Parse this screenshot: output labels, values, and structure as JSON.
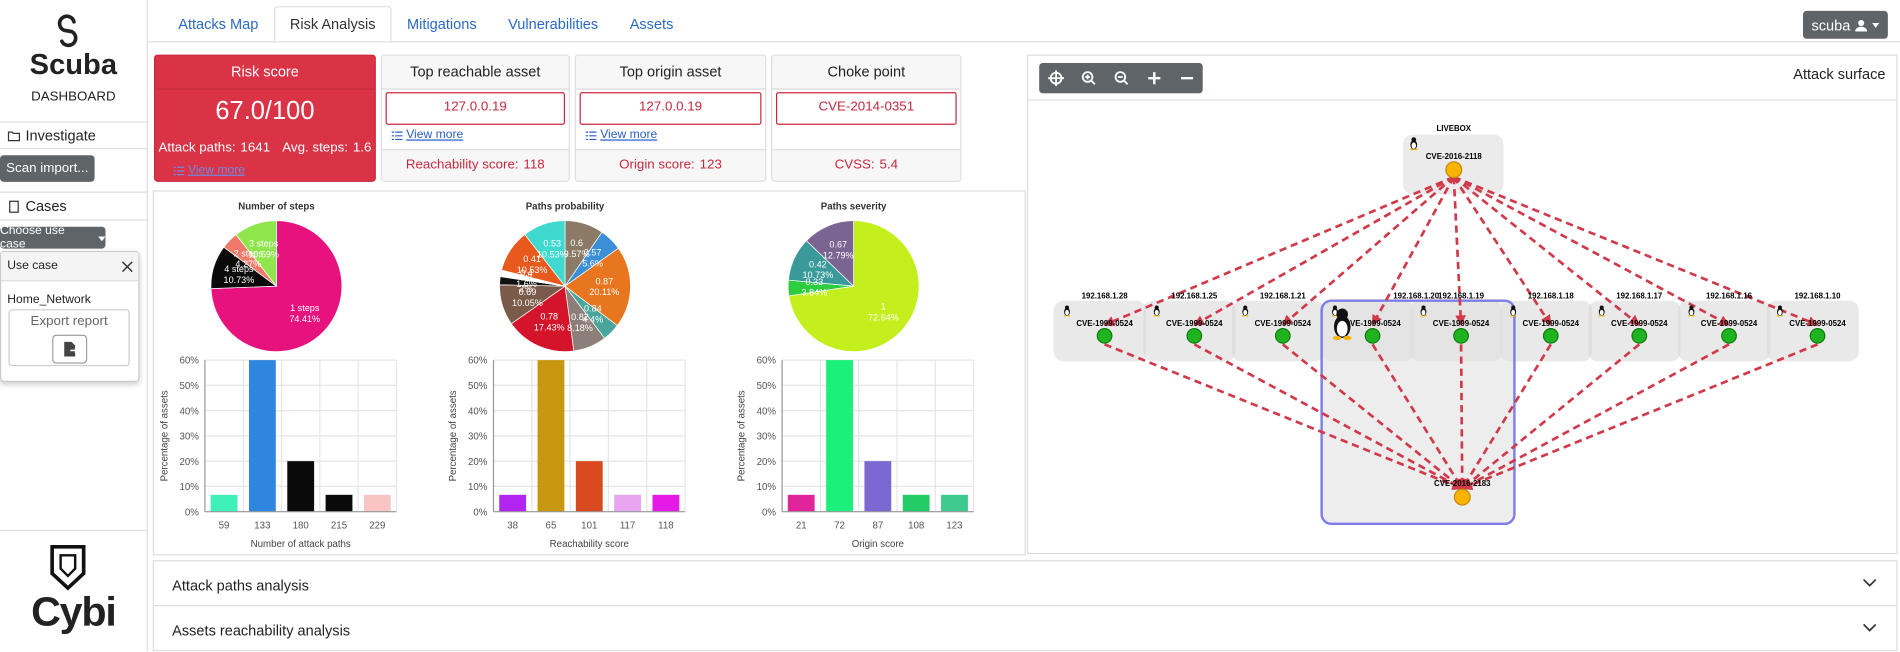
{
  "sidebar": {
    "brand": "Scuba",
    "subtitle": "DASHBOARD",
    "investigate": "Investigate",
    "scan_import": "Scan import...",
    "cases": "Cases",
    "choose_use_case": "Choose use case",
    "popover": {
      "title": "Use case",
      "item": "Home_Network",
      "export": "Export report"
    },
    "footer_brand": "Cybi"
  },
  "nav": {
    "tabs": [
      "Attacks Map",
      "Risk Analysis",
      "Mitigations",
      "Vulnerabilities",
      "Assets"
    ],
    "active_tab": 1,
    "user": "scuba"
  },
  "cards": [
    {
      "title": "Risk score",
      "score": "67.0/100",
      "attack_paths_label": "Attack paths:",
      "attack_paths": 1641,
      "avg_steps_label": "Avg. steps:",
      "avg_steps": 1.6,
      "link": "View more"
    },
    {
      "title": "Top reachable asset",
      "value": "127.0.0.19",
      "link": "View more",
      "metric_label": "Reachability score:",
      "metric": 118
    },
    {
      "title": "Top origin asset",
      "value": "127.0.0.19",
      "link": "View more",
      "metric_label": "Origin score:",
      "metric": 123
    },
    {
      "title": "Choke point",
      "value": "CVE-2014-0351",
      "metric_label": "CVSS:",
      "metric": 5.4
    }
  ],
  "chart_data": [
    {
      "type": "pie",
      "title": "Number of steps",
      "categories": [
        "1 steps",
        "4 steps",
        "2 steps",
        "3 steps"
      ],
      "values": [
        74.41,
        10.73,
        4.27,
        10.59
      ],
      "value_labels": [
        "74.41%",
        "10.73%",
        "4.27%",
        "10.59%"
      ],
      "colors": [
        "#e8127f",
        "#0a0a0a",
        "#f07a6a",
        "#8ee64c"
      ]
    },
    {
      "type": "pie",
      "title": "Paths probability",
      "categories": [
        "0.6",
        "0.57",
        "0.87",
        "0.84",
        "0.82",
        "0.78",
        "0.69",
        "0.3",
        "0.4",
        "0.41",
        "0.53"
      ],
      "values": [
        9.57,
        5.6,
        20.11,
        4.4,
        8.18,
        17.43,
        10.05,
        2,
        1.6,
        10.53,
        10.53
      ],
      "value_labels": [
        "9.57%",
        "5.6%",
        "20.11%",
        "4.4%",
        "8.18%",
        "17.43%",
        "10.05%",
        "2%",
        "1.6%",
        "10.53%",
        "10.53%"
      ],
      "colors": [
        "#8b7a66",
        "#3a8fd6",
        "#e8761e",
        "#4aa59a",
        "#8c7e78",
        "#d4142a",
        "#7a5a48",
        "#111111",
        "#ffffff",
        "#e8591e",
        "#3fd9d0"
      ]
    },
    {
      "type": "pie",
      "title": "Paths severity",
      "categories": [
        "1",
        "0.33",
        "0.42",
        "0.67"
      ],
      "values": [
        72.64,
        3.84,
        10.73,
        12.79
      ],
      "value_labels": [
        "72.64%",
        "3.84%",
        "10.73%",
        "12.79%"
      ],
      "colors": [
        "#c3f01d",
        "#2ecc40",
        "#3a9a9a",
        "#7a6491"
      ]
    },
    {
      "type": "bar",
      "categories": [
        "59",
        "133",
        "180",
        "215",
        "229"
      ],
      "values": [
        6.67,
        60,
        20,
        6.67,
        6.67
      ],
      "colors": [
        "#3ff0b9",
        "#2e86de",
        "#0a0a0a",
        "#0a0a0a",
        "#f8c4c4"
      ],
      "xlabel": "Number of attack paths",
      "ylabel": "Percentage of assets",
      "ylim": [
        0,
        60
      ],
      "yticks": [
        {
          "value": 0,
          "label": "0%"
        },
        {
          "value": 10,
          "label": "10%"
        },
        {
          "value": 20,
          "label": "20%"
        },
        {
          "value": 30,
          "label": "30%"
        },
        {
          "value": 40,
          "label": "40%"
        },
        {
          "value": 50,
          "label": "50%"
        },
        {
          "value": 60,
          "label": "60%"
        }
      ],
      "grid": true
    },
    {
      "type": "bar",
      "categories": [
        "38",
        "65",
        "101",
        "117",
        "118"
      ],
      "values": [
        6.67,
        60,
        20,
        6.67,
        6.67
      ],
      "colors": [
        "#b225f0",
        "#c8960f",
        "#d94a1e",
        "#e8a6f0",
        "#e61ae6"
      ],
      "xlabel": "Reachability score",
      "ylabel": "Percentage of assets",
      "ylim": [
        0,
        60
      ],
      "yticks": [
        {
          "value": 0,
          "label": "0%"
        },
        {
          "value": 10,
          "label": "10%"
        },
        {
          "value": 20,
          "label": "20%"
        },
        {
          "value": 30,
          "label": "30%"
        },
        {
          "value": 40,
          "label": "40%"
        },
        {
          "value": 50,
          "label": "50%"
        },
        {
          "value": 60,
          "label": "60%"
        }
      ],
      "grid": true
    },
    {
      "type": "bar",
      "categories": [
        "21",
        "72",
        "87",
        "108",
        "123"
      ],
      "values": [
        6.67,
        60,
        20,
        6.67,
        6.67
      ],
      "colors": [
        "#e0249b",
        "#1af07a",
        "#7b68d0",
        "#22cc66",
        "#3ec98e"
      ],
      "xlabel": "Origin score",
      "ylabel": "Percentage of assets",
      "ylim": [
        0,
        60
      ],
      "yticks": [
        {
          "value": 0,
          "label": "0%"
        },
        {
          "value": 10,
          "label": "10%"
        },
        {
          "value": 20,
          "label": "20%"
        },
        {
          "value": 30,
          "label": "30%"
        },
        {
          "value": 40,
          "label": "40%"
        },
        {
          "value": 50,
          "label": "50%"
        },
        {
          "value": 60,
          "label": "60%"
        }
      ],
      "grid": true
    }
  ],
  "graph": {
    "title": "Attack surface",
    "source": {
      "label": "LIVEBOX",
      "cve": "CVE-2016-2118"
    },
    "hosts": [
      {
        "ip": "192.168.1.28",
        "cve": "CVE-1999-0524"
      },
      {
        "ip": "192.168.1.25",
        "cve": "CVE-1999-0524"
      },
      {
        "ip": "192.168.1.21",
        "cve": "CVE-1999-0524"
      },
      {
        "ip": "192.168.1.20",
        "cve": "CVE-1999-0524"
      },
      {
        "ip": "192.168.1.19",
        "cve": "CVE-1999-0524"
      },
      {
        "ip": "192.168.1.18",
        "cve": "CVE-1999-0524"
      },
      {
        "ip": "192.168.1.17",
        "cve": "CVE-1999-0524"
      },
      {
        "ip": "192.168.1.16",
        "cve": "CVE-1999-0524"
      },
      {
        "ip": "192.168.1.10",
        "cve": "CVE-1999-0524"
      }
    ],
    "target": {
      "cve": "CVE-2016-2183"
    }
  },
  "accordion": [
    "Attack paths analysis",
    "Assets reachability analysis"
  ]
}
